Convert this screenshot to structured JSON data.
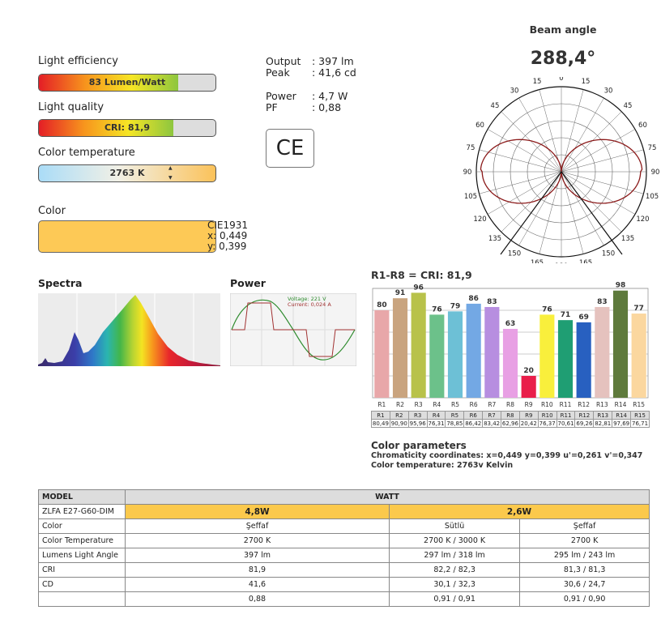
{
  "efficiency": {
    "label": "Light efficiency",
    "value": "83 Lumen/Watt",
    "level": 0.79
  },
  "quality": {
    "label": "Light quality",
    "value": "CRI: 81,9",
    "level": 0.76
  },
  "temperature": {
    "label": "Color temperature",
    "value": "2763 K",
    "arrow_up": "▲",
    "arrow_down": "▼"
  },
  "color": {
    "label": "Color",
    "swatch": "#fdc956",
    "cie_title": "CIE1931",
    "cie_x": "x: 0,449",
    "cie_y": "y: 0,399"
  },
  "specs": [
    {
      "key": "Output",
      "value": ": 397 lm"
    },
    {
      "key": "Peak",
      "value": ": 41,6 cd"
    },
    {
      "key": "Power",
      "value": ": 4,7 W"
    },
    {
      "key": "PF",
      "value": ": 0,88"
    }
  ],
  "ce_mark": "CE",
  "beam": {
    "title": "Beam angle",
    "value": "288,4°",
    "angle_labels_left": [
      "15",
      "30",
      "45",
      "60",
      "75",
      "90",
      "105",
      "120",
      "135",
      "150",
      "165"
    ],
    "angle_labels_right": [
      "15",
      "30",
      "45",
      "60",
      "75",
      "90",
      "105",
      "120",
      "135",
      "150",
      "165"
    ],
    "angle_top": "0",
    "angle_bottom": "180"
  },
  "spectra": {
    "title": "Spectra"
  },
  "power": {
    "title": "Power",
    "voltage": "Voltage: 221 V",
    "current": "Current: 0,024 A"
  },
  "chart_data": {
    "type": "bar",
    "title": "R1-R8 = CRI: 81,9",
    "categories": [
      "R1",
      "R2",
      "R3",
      "R4",
      "R5",
      "R6",
      "R7",
      "R8",
      "R9",
      "R10",
      "R11",
      "R12",
      "R13",
      "R14",
      "R15"
    ],
    "values": [
      80,
      91,
      96,
      76,
      79,
      86,
      83,
      63,
      20,
      76,
      71,
      69,
      83,
      98,
      77
    ],
    "value_labels": [
      "80",
      "91",
      "96",
      "76",
      "79",
      "86",
      "83",
      "63",
      "20",
      "76",
      "71",
      "69",
      "83",
      "98",
      "77"
    ],
    "colors": [
      "#e8a7a9",
      "#c9a47f",
      "#b8c24a",
      "#6cc18a",
      "#6dc0d6",
      "#73a8e4",
      "#b78ee0",
      "#e8a0e4",
      "#e91e4a",
      "#f9ef3c",
      "#1f9e73",
      "#2860c0",
      "#e5c2be",
      "#5e7a3c",
      "#fbd79f"
    ],
    "table_values": [
      "80,49",
      "90,90",
      "95,96",
      "76,31",
      "78,85",
      "86,42",
      "83,42",
      "62,96",
      "20,42",
      "76,37",
      "70,61",
      "69,26",
      "82,81",
      "97,69",
      "76,71"
    ],
    "ylim": [
      0,
      100
    ]
  },
  "color_params": {
    "title": "Color parameters",
    "line1": "Chromaticity coordinates: x=0,449 y=0,399  u'=0,261 v'=0,347",
    "line2": "Color temperature: 2763v Kelvin"
  },
  "model_table": {
    "model_header": "MODEL",
    "watt_header": "WATT",
    "model_name": "ZLFA E27-G60-DIM",
    "watt_a": "4,8W",
    "watt_b": "2,6W",
    "rows": [
      {
        "label": "Color",
        "a": "Şeffaf",
        "b1": "Sütlü",
        "b2": "Şeffaf"
      },
      {
        "label": "Color Temperature",
        "a": "2700 K",
        "b1": "2700 K / 3000 K",
        "b2": "2700 K"
      },
      {
        "label": "Lumens Light Angle",
        "a": "397 lm",
        "b1": "297 lm / 318 lm",
        "b2": "295 lm / 243 lm"
      },
      {
        "label": "CRI",
        "a": "81,9",
        "b1": "82,2 / 82,3",
        "b2": "81,3 / 81,3"
      },
      {
        "label": "CD",
        "a": "41,6",
        "b1": "30,1 / 32,3",
        "b2": "30,6 / 24,7"
      },
      {
        "label": "",
        "a": "0,88",
        "b1": "0,91 / 0,91",
        "b2": "0,91 / 0,90"
      }
    ]
  }
}
